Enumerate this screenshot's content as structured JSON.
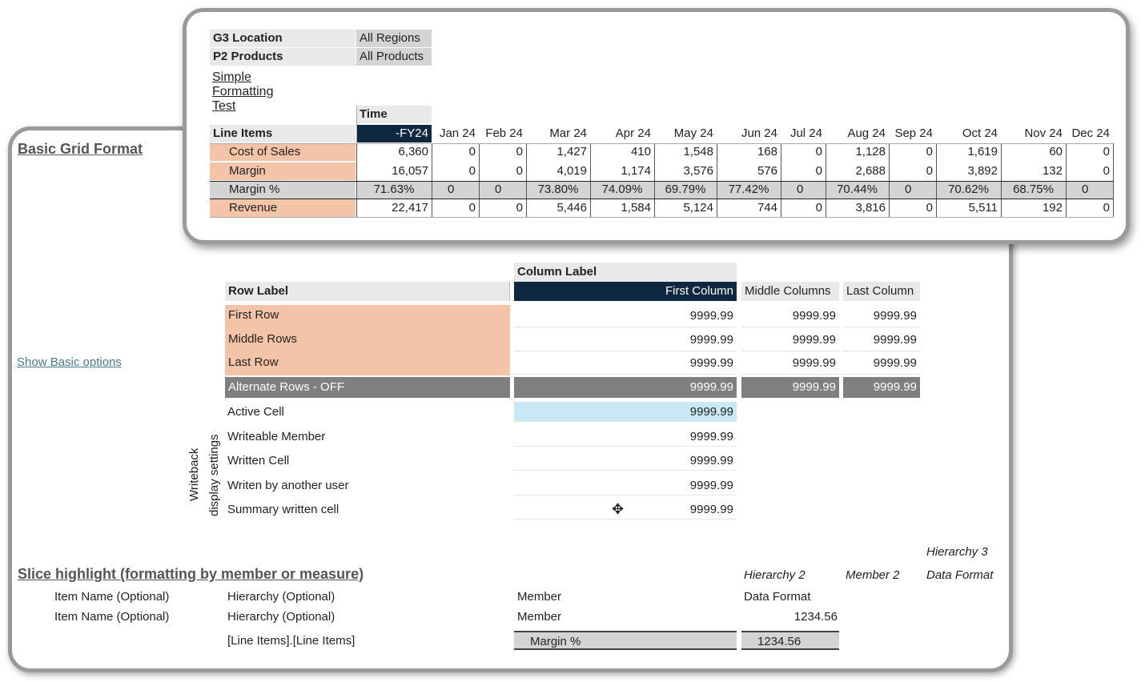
{
  "filters": [
    {
      "name": "G3 Location",
      "value": "All Regions"
    },
    {
      "name": "P2 Products",
      "value": "All Products"
    }
  ],
  "test_title": "Simple Formatting Test",
  "grid1": {
    "time_label": "Time",
    "line_items_label": "Line Items",
    "columns": [
      "-FY24",
      "Jan 24",
      "Feb 24",
      "Mar 24",
      "Apr 24",
      "May 24",
      "Jun 24",
      "Jul 24",
      "Aug 24",
      "Sep 24",
      "Oct 24",
      "Nov 24",
      "Dec 24"
    ],
    "rows": [
      {
        "label": "Cost of Sales",
        "values": [
          "6,360",
          "0",
          "0",
          "1,427",
          "410",
          "1,548",
          "168",
          "0",
          "1,128",
          "0",
          "1,619",
          "60",
          "0"
        ]
      },
      {
        "label": "Margin",
        "values": [
          "16,057",
          "0",
          "0",
          "4,019",
          "1,174",
          "3,576",
          "576",
          "0",
          "2,688",
          "0",
          "3,892",
          "132",
          "0"
        ]
      },
      {
        "label": "Margin %",
        "values": [
          "71.63%",
          "0",
          "0",
          "73.80%",
          "74.09%",
          "69.79%",
          "77.42%",
          "0",
          "70.44%",
          "0",
          "70.62%",
          "68.75%",
          "0"
        ]
      },
      {
        "label": "Revenue",
        "values": [
          "22,417",
          "0",
          "0",
          "5,446",
          "1,584",
          "5,124",
          "744",
          "0",
          "3,816",
          "0",
          "5,511",
          "192",
          "0"
        ]
      }
    ]
  },
  "basic_grid_format": "Basic Grid Format",
  "show_basic_options": "Show Basic options",
  "format_grid": {
    "column_label": "Column Label",
    "row_label": "Row Label",
    "col_headers": [
      "First Column",
      "Middle Columns",
      "Last Column"
    ],
    "rows": [
      {
        "label": "First Row",
        "values": [
          "9999.99",
          "9999.99",
          "9999.99"
        ]
      },
      {
        "label": "Middle Rows",
        "values": [
          "9999.99",
          "9999.99",
          "9999.99"
        ]
      },
      {
        "label": "Last Row",
        "values": [
          "9999.99",
          "9999.99",
          "9999.99"
        ]
      },
      {
        "label": "Alternate Rows - OFF",
        "values": [
          "9999.99",
          "9999.99",
          "9999.99"
        ]
      }
    ],
    "writeback_rows": [
      {
        "label": "Active Cell",
        "value": "9999.99"
      },
      {
        "label": "Writeable Member",
        "value": "9999.99"
      },
      {
        "label": "Written Cell",
        "value": "9999.99"
      },
      {
        "label": "Writen by another user",
        "value": "9999.99"
      },
      {
        "label": "Summary written cell",
        "value": "9999.99"
      }
    ],
    "writeback_title_1": "Writeback",
    "writeback_title_2": "display settings"
  },
  "slice": {
    "title": "Slice highlight (formatting by member or measure)",
    "hierarchy3": "Hierarchy 3",
    "hierarchy2": "Hierarchy 2",
    "member2": "Member 2",
    "data_format_italic": "Data Format",
    "rows": [
      {
        "item": "Item Name (Optional)",
        "hier": "Hierarchy (Optional)",
        "member": "Member",
        "value": "Data Format"
      },
      {
        "item": "Item Name (Optional)",
        "hier": "Hierarchy (Optional)",
        "member": "Member",
        "value": "1234.56"
      }
    ],
    "last_row": {
      "hier": "[Line Items].[Line Items]",
      "member": "Margin %",
      "value": "1234.56"
    }
  },
  "colors": {
    "navy": "#0e2841",
    "salmon": "#f4c4a8",
    "active_cell": "#c9e8f6",
    "link": "#4a7a90"
  }
}
